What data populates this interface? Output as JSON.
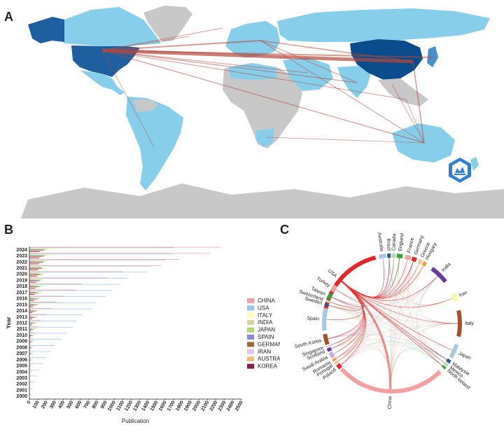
{
  "panels": {
    "a": "A",
    "b": "B",
    "c": "C"
  },
  "colors": {
    "land_gray": "#c8c8c8",
    "light_blue": "#87ceeb",
    "mid_blue": "#4a90c8",
    "dark_blue": "#0b4c8c",
    "link": "#c9664c"
  },
  "map": {
    "logo_icon": "publication-badge-icon"
  },
  "chart_data": [
    {
      "type": "bar",
      "orientation": "horizontal",
      "categories": [
        "2024",
        "2023",
        "2022",
        "2021",
        "2020",
        "2019",
        "2018",
        "2017",
        "2016",
        "2015",
        "2014",
        "2013",
        "2012",
        "2011",
        "2010",
        "2009",
        "2008",
        "2007",
        "2006",
        "2005",
        "2004",
        "2003",
        "2002",
        "2001",
        "2000"
      ],
      "xlabel": "Publication",
      "ylabel": "Year",
      "xlim": [
        0,
        2500
      ],
      "xticks": [
        "0",
        "100",
        "200",
        "300",
        "400",
        "500",
        "600",
        "700",
        "800",
        "900",
        "1000",
        "1100",
        "1200",
        "1300",
        "1400",
        "1500",
        "1600",
        "1700",
        "1800",
        "1900",
        "2000",
        "2100",
        "2200",
        "2300",
        "2400",
        "2500"
      ],
      "legend_placement": "right",
      "series": [
        {
          "name": "CHINA",
          "color": "#f4a0a0",
          "values": [
            2250,
            2130,
            1760,
            1560,
            1100,
            920,
            620,
            540,
            400,
            320,
            270,
            200,
            130,
            90,
            60,
            30,
            15,
            8,
            5,
            3,
            2,
            1,
            1,
            0,
            0
          ]
        },
        {
          "name": "USA",
          "color": "#9ec3ea",
          "values": [
            1700,
            1690,
            1610,
            1440,
            1390,
            1160,
            1060,
            980,
            900,
            790,
            740,
            620,
            560,
            510,
            440,
            380,
            300,
            250,
            200,
            160,
            120,
            90,
            60,
            40,
            30
          ]
        },
        {
          "name": "ITALY",
          "color": "#fefeb8",
          "values": [
            330,
            290,
            250,
            200,
            180,
            140,
            110,
            90,
            75,
            60,
            50,
            40,
            30,
            25,
            18,
            14,
            10,
            8,
            6,
            5,
            4,
            3,
            2,
            1,
            1
          ]
        },
        {
          "name": "INDIA",
          "color": "#d8d3a0",
          "values": [
            220,
            210,
            180,
            140,
            110,
            80,
            60,
            45,
            35,
            25,
            20,
            15,
            10,
            8,
            6,
            4,
            3,
            2,
            1,
            1,
            1,
            0,
            0,
            0,
            0
          ]
        },
        {
          "name": "JAPAN",
          "color": "#b2d67a",
          "values": [
            210,
            200,
            190,
            180,
            170,
            160,
            150,
            140,
            130,
            120,
            110,
            100,
            90,
            80,
            70,
            60,
            50,
            40,
            30,
            25,
            20,
            15,
            10,
            5,
            3
          ]
        },
        {
          "name": "SPAIN",
          "color": "#8a8ad8",
          "values": [
            180,
            170,
            160,
            140,
            120,
            110,
            95,
            80,
            70,
            60,
            50,
            40,
            35,
            30,
            20,
            15,
            10,
            8,
            6,
            4,
            3,
            2,
            1,
            1,
            0
          ]
        },
        {
          "name": "GERMANY",
          "color": "#a0683a",
          "values": [
            170,
            170,
            160,
            150,
            140,
            130,
            120,
            110,
            100,
            90,
            80,
            70,
            60,
            50,
            40,
            30,
            25,
            20,
            15,
            10,
            8,
            5,
            3,
            2,
            1
          ]
        },
        {
          "name": "IRAN",
          "color": "#e2c8e8",
          "values": [
            160,
            140,
            120,
            100,
            80,
            60,
            45,
            35,
            25,
            20,
            15,
            10,
            8,
            6,
            4,
            3,
            2,
            1,
            1,
            0,
            0,
            0,
            0,
            0,
            0
          ]
        },
        {
          "name": "AUSTRALIA",
          "color": "#f8bc7a",
          "values": [
            140,
            130,
            120,
            110,
            100,
            90,
            80,
            70,
            60,
            50,
            45,
            40,
            30,
            25,
            20,
            15,
            10,
            8,
            6,
            4,
            3,
            2,
            1,
            1,
            0
          ]
        },
        {
          "name": "KOREA",
          "color": "#8a1c4a",
          "values": [
            120,
            115,
            110,
            100,
            90,
            80,
            70,
            60,
            50,
            40,
            35,
            30,
            25,
            20,
            15,
            10,
            8,
            6,
            4,
            3,
            2,
            1,
            1,
            0,
            0
          ]
        }
      ]
    },
    {
      "type": "chord",
      "nodes": [
        {
          "name": "USA",
          "color": "#e2262a",
          "start": -86,
          "end": -14
        },
        {
          "name": "Australia",
          "color": "#a8c8e0",
          "start": -11,
          "end": -5
        },
        {
          "name": "Brazil",
          "color": "#2a5a9a",
          "start": -4,
          "end": -1
        },
        {
          "name": "Canada",
          "color": "#b8d8a0",
          "start": 0,
          "end": 3
        },
        {
          "name": "England",
          "color": "#3aa03a",
          "start": 4,
          "end": 9
        },
        {
          "name": "France",
          "color": "#f0a0a0",
          "start": 11,
          "end": 16
        },
        {
          "name": "Germany",
          "color": "#e2262a",
          "start": 17,
          "end": 21
        },
        {
          "name": "Greece",
          "color": "#f8c890",
          "start": 23,
          "end": 26
        },
        {
          "name": "Hungary",
          "color": "#f59a3a",
          "start": 27,
          "end": 30
        },
        {
          "name": "India",
          "color": "#6a3a9a",
          "start": 36,
          "end": 52
        },
        {
          "name": "Iran",
          "color": "#fafa9a",
          "start": 64,
          "end": 71
        },
        {
          "name": "Italy",
          "color": "#a0522d",
          "start": 79,
          "end": 101
        },
        {
          "name": "Japan",
          "color": "#a8c8e0",
          "start": 108,
          "end": 120
        },
        {
          "name": "Malaysia",
          "color": "#2a5a9a",
          "start": 122,
          "end": 125
        },
        {
          "name": "Mexico",
          "color": "#b8d8a0",
          "start": 126,
          "end": 128
        },
        {
          "name": "North Ireland",
          "color": "#3aa03a",
          "start": 129,
          "end": 131
        },
        {
          "name": "China",
          "color": "#f4a0a0",
          "start": 135,
          "end": 228
        },
        {
          "name": "Poland",
          "color": "#e2262a",
          "start": 229,
          "end": 233
        },
        {
          "name": "Portugal",
          "color": "#f8c890",
          "start": 234,
          "end": 236
        },
        {
          "name": "Romania",
          "color": "#f59a3a",
          "start": 237,
          "end": 239
        },
        {
          "name": "Saudi Arabia",
          "color": "#c8b0d8",
          "start": 240,
          "end": 245
        },
        {
          "name": "Scotland",
          "color": "#6a3a9a",
          "start": 246,
          "end": 249
        },
        {
          "name": "Singapore",
          "color": "#c8c8c8",
          "start": 250,
          "end": 251
        },
        {
          "name": "South Korea",
          "color": "#a0522d",
          "start": 252,
          "end": 261
        },
        {
          "name": "Spain",
          "color": "#a8c8e0",
          "start": 264,
          "end": 283
        },
        {
          "name": "Sweden",
          "color": "#2a5a9a",
          "start": 285,
          "end": 287
        },
        {
          "name": "Switzerland",
          "color": "#b8d8a0",
          "start": 288,
          "end": 290
        },
        {
          "name": "Taiwan",
          "color": "#3aa03a",
          "start": 291,
          "end": 296
        },
        {
          "name": "Turkey",
          "color": "#f0a0a0",
          "start": 298,
          "end": 304
        }
      ]
    }
  ]
}
